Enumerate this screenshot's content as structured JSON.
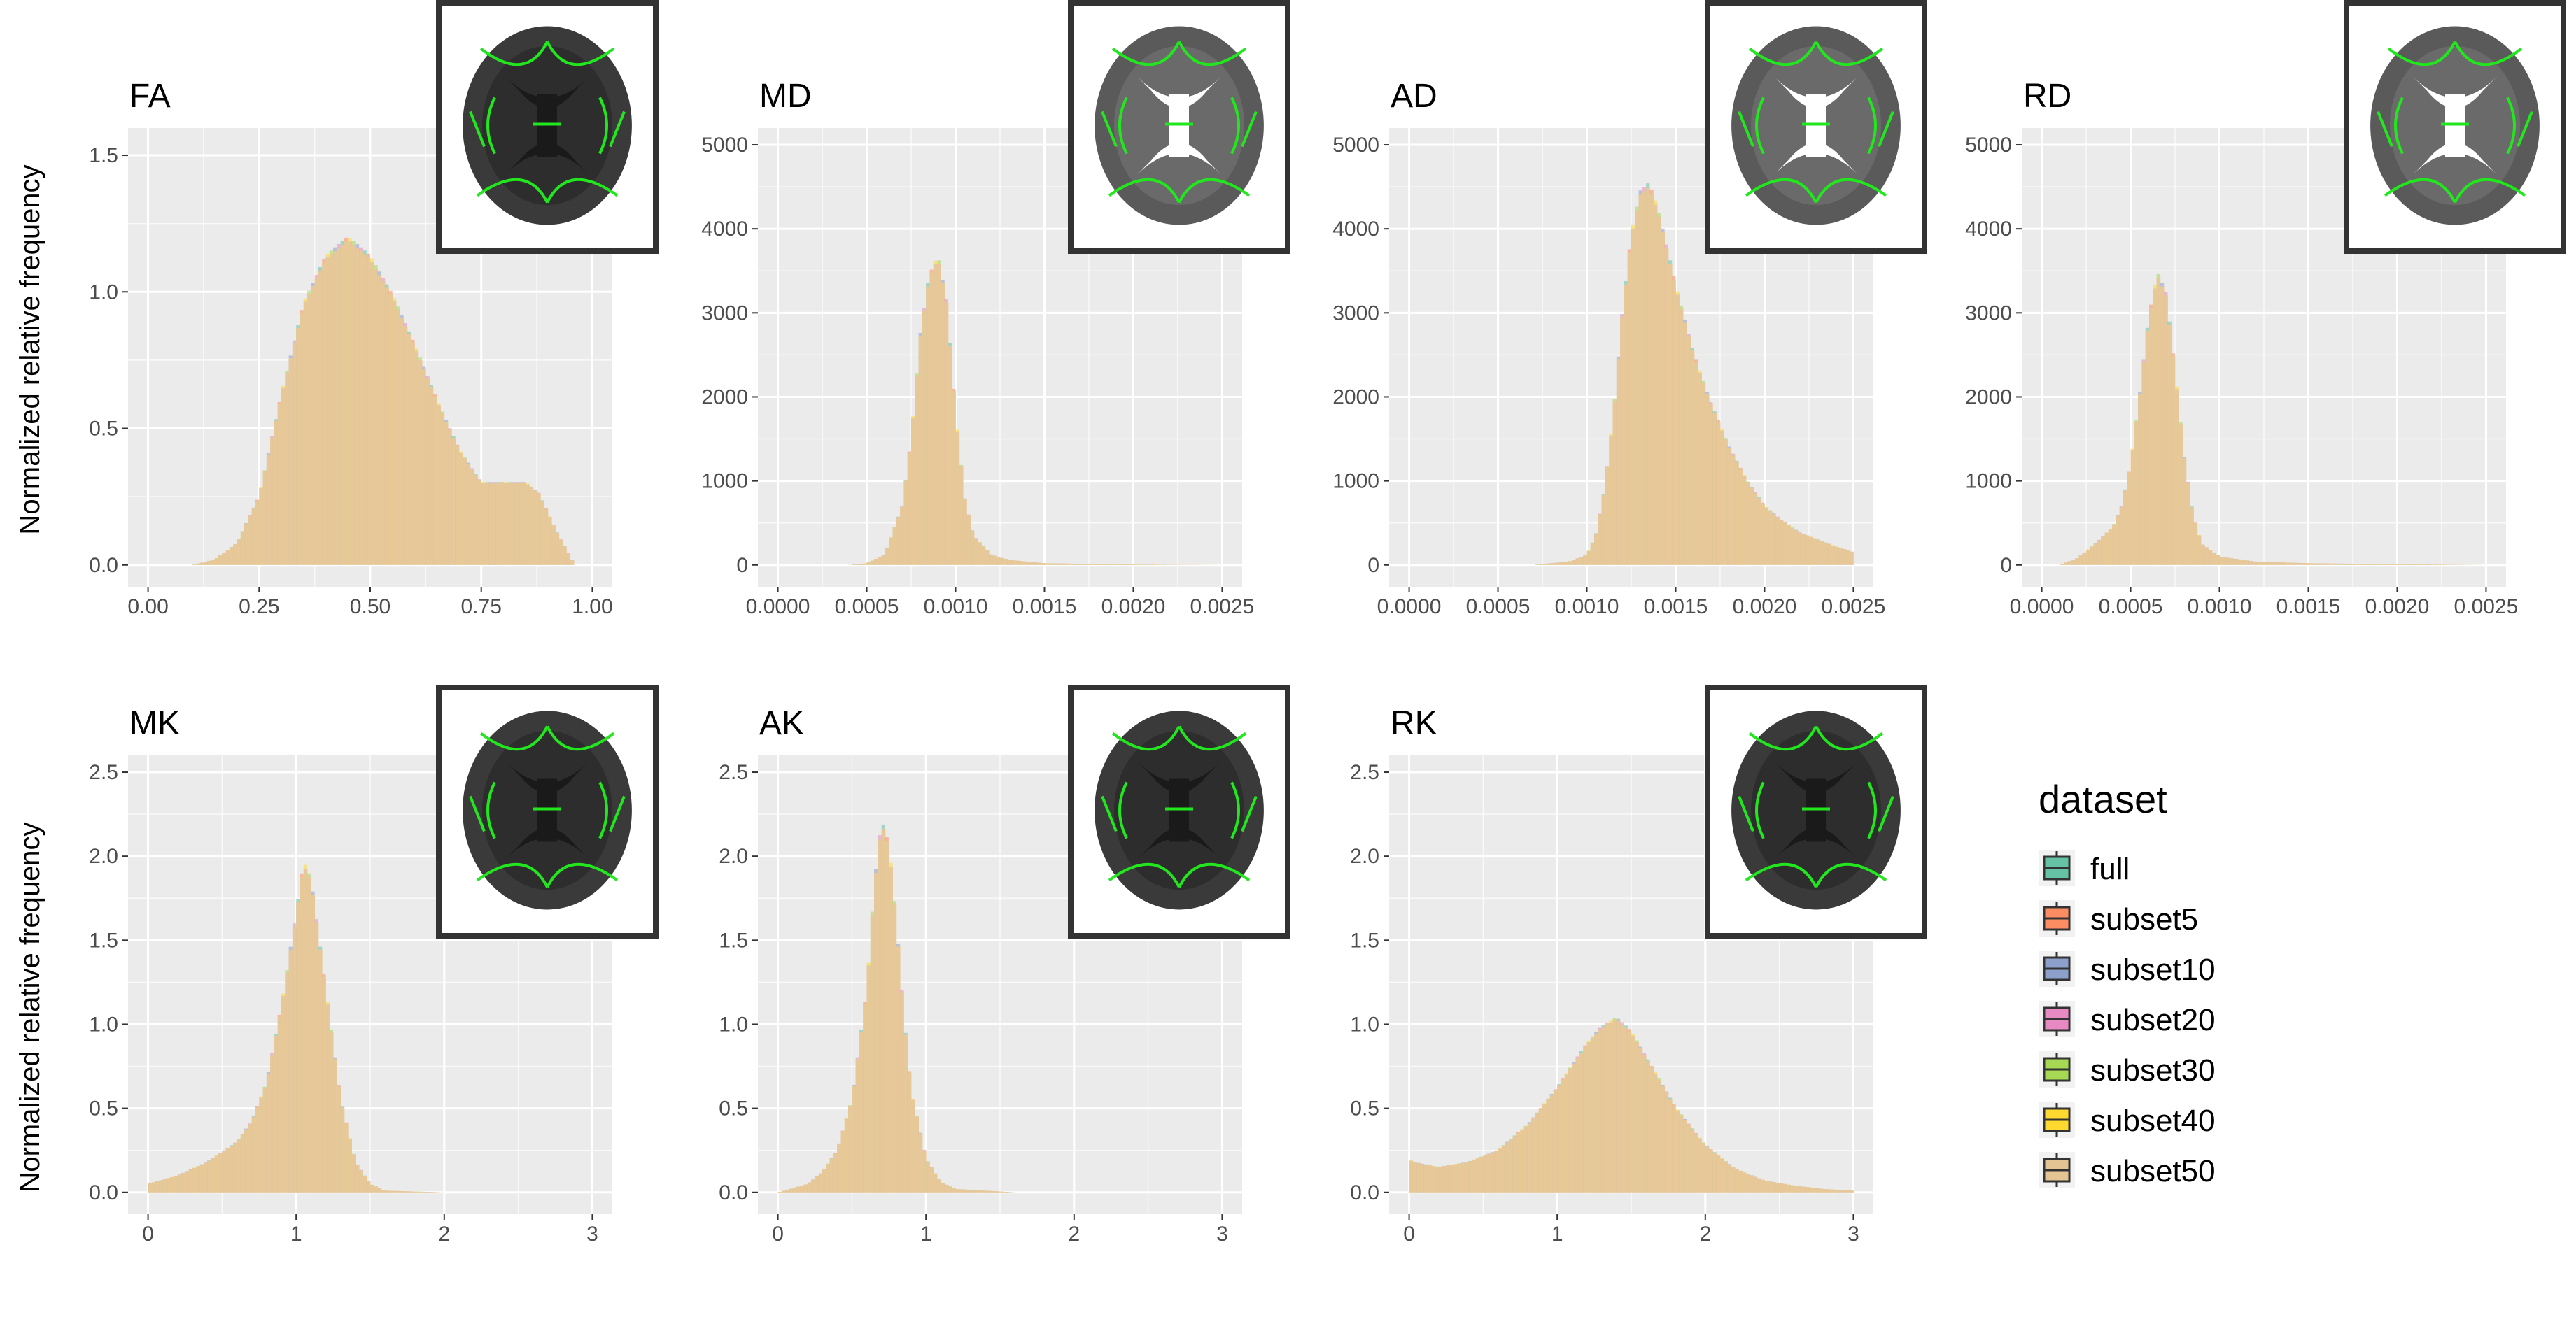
{
  "figure": {
    "ylabel": "Normalized relative frequency",
    "legend_title": "dataset",
    "legend_position": "right",
    "colors": {
      "panel_bg": "#EBEBEB",
      "grid": "#FFFFFF",
      "hist_fill": "#E7C898",
      "brain_green": "#22E61E",
      "inset_border": "#333333"
    }
  },
  "legend": {
    "items": [
      {
        "label": "full",
        "color": "#66C2A5"
      },
      {
        "label": "subset5",
        "color": "#FC8D62"
      },
      {
        "label": "subset10",
        "color": "#8DA0CB"
      },
      {
        "label": "subset20",
        "color": "#E78AC3"
      },
      {
        "label": "subset30",
        "color": "#A6D854"
      },
      {
        "label": "subset40",
        "color": "#FFD92F"
      },
      {
        "label": "subset50",
        "color": "#E5C494"
      }
    ]
  },
  "chart_data": [
    {
      "type": "histogram",
      "title": "FA",
      "xlim": [
        0,
        1
      ],
      "ylim": [
        0,
        1.6
      ],
      "xticks": [
        0,
        0.25,
        0.5,
        0.75,
        1
      ],
      "xtick_labels": [
        "0.00",
        "0.25",
        "0.50",
        "0.75",
        "1.00"
      ],
      "yticks": [
        0,
        0.5,
        1,
        1.5
      ],
      "ytick_labels": [
        "0.0",
        "0.5",
        "1.0",
        "1.5"
      ],
      "density": {
        "x": [
          0.1,
          0.15,
          0.2,
          0.25,
          0.3,
          0.35,
          0.4,
          0.45,
          0.5,
          0.55,
          0.6,
          0.65,
          0.7,
          0.75,
          0.8,
          0.85,
          0.88,
          0.92,
          0.96
        ],
        "y": [
          0.0,
          0.02,
          0.08,
          0.25,
          0.62,
          0.95,
          1.12,
          1.19,
          1.12,
          0.98,
          0.8,
          0.6,
          0.42,
          0.3,
          0.3,
          0.3,
          0.26,
          0.12,
          0.0
        ]
      }
    },
    {
      "type": "histogram",
      "title": "MD",
      "xlim": [
        0,
        0.0025
      ],
      "ylim": [
        0,
        5200
      ],
      "xticks": [
        0,
        0.0005,
        0.001,
        0.0015,
        0.002,
        0.0025
      ],
      "xtick_labels": [
        "0.0000",
        "0.0005",
        "0.0010",
        "0.0015",
        "0.0020",
        "0.0025"
      ],
      "yticks": [
        0,
        1000,
        2000,
        3000,
        4000,
        5000
      ],
      "ytick_labels": [
        "0",
        "1000",
        "2000",
        "3000",
        "4000",
        "5000"
      ],
      "density": {
        "x": [
          0.0004,
          0.0005,
          0.0006,
          0.0007,
          0.00075,
          0.0008,
          0.00085,
          0.0009,
          0.00095,
          0.001,
          0.00105,
          0.0011,
          0.0012,
          0.0013,
          0.0015,
          0.002,
          0.0025
        ],
        "y": [
          0,
          20,
          120,
          700,
          1500,
          2700,
          3400,
          3650,
          3100,
          1800,
          800,
          350,
          120,
          60,
          20,
          5,
          0
        ]
      }
    },
    {
      "type": "histogram",
      "title": "AD",
      "xlim": [
        0,
        0.0025
      ],
      "ylim": [
        0,
        5200
      ],
      "xticks": [
        0,
        0.0005,
        0.001,
        0.0015,
        0.002,
        0.0025
      ],
      "xtick_labels": [
        "0.0000",
        "0.0005",
        "0.0010",
        "0.0015",
        "0.0020",
        "0.0025"
      ],
      "yticks": [
        0,
        1000,
        2000,
        3000,
        4000,
        5000
      ],
      "ytick_labels": [
        "0",
        "1000",
        "2000",
        "3000",
        "4000",
        "5000"
      ],
      "density": {
        "x": [
          0.0007,
          0.0009,
          0.001,
          0.00105,
          0.0011,
          0.00115,
          0.0012,
          0.00125,
          0.0013,
          0.00135,
          0.0014,
          0.0015,
          0.0016,
          0.0017,
          0.0018,
          0.0019,
          0.002,
          0.0021,
          0.0022,
          0.0023,
          0.0024,
          0.0025
        ],
        "y": [
          0,
          40,
          120,
          350,
          900,
          1800,
          3000,
          3900,
          4400,
          4500,
          4200,
          3300,
          2500,
          1900,
          1400,
          1000,
          700,
          520,
          380,
          300,
          220,
          150
        ]
      }
    },
    {
      "type": "histogram",
      "title": "RD",
      "xlim": [
        0,
        0.0025
      ],
      "ylim": [
        0,
        5200
      ],
      "xticks": [
        0,
        0.0005,
        0.001,
        0.0015,
        0.002,
        0.0025
      ],
      "xtick_labels": [
        "0.0000",
        "0.0005",
        "0.0010",
        "0.0015",
        "0.0020",
        "0.0025"
      ],
      "yticks": [
        0,
        1000,
        2000,
        3000,
        4000,
        5000
      ],
      "ytick_labels": [
        "0",
        "1000",
        "2000",
        "3000",
        "4000",
        "5000"
      ],
      "density": {
        "x": [
          0.0001,
          0.0002,
          0.0003,
          0.0004,
          0.00045,
          0.0005,
          0.00055,
          0.0006,
          0.00065,
          0.0007,
          0.00075,
          0.0008,
          0.00085,
          0.0009,
          0.001,
          0.0012,
          0.0015,
          0.002,
          0.0025
        ],
        "y": [
          0,
          80,
          250,
          450,
          700,
          1200,
          2000,
          2900,
          3450,
          3200,
          2300,
          1300,
          600,
          250,
          100,
          40,
          20,
          8,
          0
        ]
      }
    },
    {
      "type": "histogram",
      "title": "MK",
      "xlim": [
        0,
        3
      ],
      "ylim": [
        0,
        2.6
      ],
      "xticks": [
        0,
        1,
        2,
        3
      ],
      "xtick_labels": [
        "0",
        "1",
        "2",
        "3"
      ],
      "yticks": [
        0,
        0.5,
        1,
        1.5,
        2,
        2.5
      ],
      "ytick_labels": [
        "0.0",
        "0.5",
        "1.0",
        "1.5",
        "2.0",
        "2.5"
      ],
      "density": {
        "x": [
          0,
          0.2,
          0.4,
          0.6,
          0.7,
          0.8,
          0.9,
          1.0,
          1.05,
          1.1,
          1.2,
          1.3,
          1.4,
          1.5,
          1.6,
          2.0,
          3.0
        ],
        "y": [
          0.05,
          0.1,
          0.18,
          0.3,
          0.42,
          0.65,
          1.1,
          1.65,
          1.95,
          1.85,
          1.2,
          0.55,
          0.18,
          0.05,
          0.01,
          0,
          0
        ]
      }
    },
    {
      "type": "histogram",
      "title": "AK",
      "xlim": [
        0,
        3
      ],
      "ylim": [
        0,
        2.6
      ],
      "xticks": [
        0,
        1,
        2,
        3
      ],
      "xtick_labels": [
        "0",
        "1",
        "2",
        "3"
      ],
      "yticks": [
        0,
        0.5,
        1,
        1.5,
        2,
        2.5
      ],
      "ytick_labels": [
        "0.0",
        "0.5",
        "1.0",
        "1.5",
        "2.0",
        "2.5"
      ],
      "density": {
        "x": [
          0,
          0.2,
          0.3,
          0.4,
          0.5,
          0.6,
          0.65,
          0.7,
          0.75,
          0.8,
          0.85,
          0.9,
          1.0,
          1.1,
          1.2,
          1.4,
          1.6,
          3.0
        ],
        "y": [
          0,
          0.05,
          0.12,
          0.25,
          0.55,
          1.2,
          1.8,
          2.2,
          2.05,
          1.6,
          1.05,
          0.6,
          0.2,
          0.06,
          0.02,
          0.01,
          0,
          0
        ]
      }
    },
    {
      "type": "histogram",
      "title": "RK",
      "xlim": [
        0,
        3
      ],
      "ylim": [
        0,
        2.6
      ],
      "xticks": [
        0,
        1,
        2,
        3
      ],
      "xtick_labels": [
        "0",
        "1",
        "2",
        "3"
      ],
      "yticks": [
        0,
        0.5,
        1,
        1.5,
        2,
        2.5
      ],
      "ytick_labels": [
        "0.0",
        "0.5",
        "1.0",
        "1.5",
        "2.0",
        "2.5"
      ],
      "density": {
        "x": [
          0,
          0.02,
          0.2,
          0.4,
          0.6,
          0.8,
          1.0,
          1.2,
          1.3,
          1.4,
          1.5,
          1.6,
          1.8,
          2.0,
          2.2,
          2.4,
          2.6,
          2.8,
          3.0
        ],
        "y": [
          0.2,
          0.18,
          0.15,
          0.18,
          0.25,
          0.4,
          0.62,
          0.88,
          0.98,
          1.03,
          0.95,
          0.8,
          0.5,
          0.28,
          0.14,
          0.07,
          0.04,
          0.02,
          0.01
        ]
      }
    }
  ]
}
